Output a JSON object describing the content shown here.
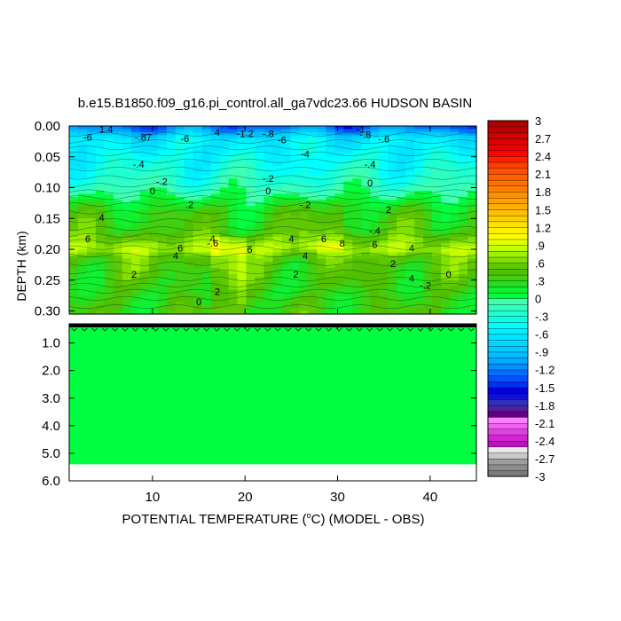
{
  "chart_data": {
    "type": "heatmap",
    "title": "b.e15.B1850.f09_g16.pi_control.all_ga7vdc23.66 HUDSON BASIN",
    "xlabel_prefix": "POTENTIAL TEMPERATURE (",
    "xlabel_unit": "C",
    "xlabel_suffix": ") (MODEL - OBS)",
    "ylabel": "DEPTH (km)",
    "xlim": [
      1,
      45
    ],
    "x_ticks": [
      "10",
      "20",
      "30",
      "40"
    ],
    "x_tick_values": [
      10,
      20,
      30,
      40
    ],
    "upper_panel": {
      "ylim": [
        0.0,
        0.305
      ],
      "y_ticks": [
        "0.00",
        "0.05",
        "0.10",
        "0.15",
        "0.20",
        "0.25",
        "0.30"
      ],
      "y_tick_values": [
        0.0,
        0.05,
        0.1,
        0.15,
        0.2,
        0.25,
        0.3
      ],
      "layers": [
        {
          "depth": 0.0,
          "value": -1.3
        },
        {
          "depth": 0.01,
          "value": -1.0
        },
        {
          "depth": 0.02,
          "value": -0.6
        },
        {
          "depth": 0.04,
          "value": -0.5
        },
        {
          "depth": 0.06,
          "value": -0.4
        },
        {
          "depth": 0.08,
          "value": -0.3
        },
        {
          "depth": 0.1,
          "value": -0.15
        },
        {
          "depth": 0.12,
          "value": 0.1
        },
        {
          "depth": 0.14,
          "value": 0.3
        },
        {
          "depth": 0.17,
          "value": 0.4
        },
        {
          "depth": 0.185,
          "value": 0.6
        },
        {
          "depth": 0.2,
          "value": 0.8
        },
        {
          "depth": 0.215,
          "value": 0.5
        },
        {
          "depth": 0.24,
          "value": 0.4
        },
        {
          "depth": 0.27,
          "value": 0.3
        },
        {
          "depth": 0.305,
          "value": 0.35
        }
      ],
      "contour_labels": [
        {
          "x": 5,
          "y": 0.005,
          "text": "1.4"
        },
        {
          "x": 3,
          "y": 0.018,
          "text": "-6"
        },
        {
          "x": 9,
          "y": 0.018,
          "text": "-.87"
        },
        {
          "x": 13.5,
          "y": 0.02,
          "text": "-6"
        },
        {
          "x": 20,
          "y": 0.012,
          "text": "-1.2"
        },
        {
          "x": 22.5,
          "y": 0.012,
          "text": "-.8"
        },
        {
          "x": 24,
          "y": 0.022,
          "text": "-6"
        },
        {
          "x": 32.5,
          "y": 0.005,
          "text": "-1"
        },
        {
          "x": 33,
          "y": 0.014,
          "text": "-.8"
        },
        {
          "x": 35,
          "y": 0.021,
          "text": "-.6"
        },
        {
          "x": 26.5,
          "y": 0.045,
          "text": "-4"
        },
        {
          "x": 8.5,
          "y": 0.062,
          "text": "-.4"
        },
        {
          "x": 33.5,
          "y": 0.062,
          "text": "-.4"
        },
        {
          "x": 11,
          "y": 0.09,
          "text": "-.2"
        },
        {
          "x": 10,
          "y": 0.105,
          "text": "0"
        },
        {
          "x": 22.5,
          "y": 0.085,
          "text": "-.2"
        },
        {
          "x": 22.5,
          "y": 0.105,
          "text": "0"
        },
        {
          "x": 33.5,
          "y": 0.092,
          "text": "0"
        },
        {
          "x": 14,
          "y": 0.127,
          "text": ".2"
        },
        {
          "x": 26.5,
          "y": 0.127,
          "text": "-.2"
        },
        {
          "x": 35.5,
          "y": 0.135,
          "text": "2"
        },
        {
          "x": 4.5,
          "y": 0.148,
          "text": "4"
        },
        {
          "x": 34,
          "y": 0.17,
          "text": "-.4"
        },
        {
          "x": 3,
          "y": 0.183,
          "text": "6"
        },
        {
          "x": 16.5,
          "y": 0.183,
          "text": "4"
        },
        {
          "x": 16.5,
          "y": 0.19,
          "text": "-.6"
        },
        {
          "x": 25,
          "y": 0.183,
          "text": "4"
        },
        {
          "x": 28.5,
          "y": 0.183,
          "text": "6"
        },
        {
          "x": 30.5,
          "y": 0.19,
          "text": "8"
        },
        {
          "x": 34,
          "y": 0.192,
          "text": "6"
        },
        {
          "x": 13,
          "y": 0.198,
          "text": "6"
        },
        {
          "x": 20.5,
          "y": 0.2,
          "text": "6"
        },
        {
          "x": 38,
          "y": 0.198,
          "text": "4"
        },
        {
          "x": 12.5,
          "y": 0.21,
          "text": "4"
        },
        {
          "x": 26.5,
          "y": 0.21,
          "text": "4"
        },
        {
          "x": 36,
          "y": 0.223,
          "text": "2"
        },
        {
          "x": 8,
          "y": 0.24,
          "text": "2"
        },
        {
          "x": 25.5,
          "y": 0.24,
          "text": "2"
        },
        {
          "x": 38,
          "y": 0.247,
          "text": "4"
        },
        {
          "x": 42,
          "y": 0.24,
          "text": "0"
        },
        {
          "x": 39.5,
          "y": 0.258,
          "text": "-.2"
        },
        {
          "x": 17,
          "y": 0.268,
          "text": "2"
        },
        {
          "x": 15,
          "y": 0.285,
          "text": "0"
        },
        {
          "x": 17,
          "y": 0.01,
          "text": "4"
        }
      ]
    },
    "lower_panel": {
      "ylim": [
        0.305,
        6.0
      ],
      "y_ticks": [
        "1.0",
        "2.0",
        "3.0",
        "4.0",
        "5.0",
        "6.0"
      ],
      "y_tick_values": [
        1.0,
        2.0,
        3.0,
        4.0,
        5.0,
        6.0
      ],
      "fill_value": 0.05,
      "fill_bottom_depth": 5.4
    },
    "colorbar": {
      "levels": [
        "3",
        "2.7",
        "2.4",
        "2.1",
        "1.8",
        "1.5",
        "1.2",
        ".9",
        ".6",
        ".3",
        "0",
        "-.3",
        "-.6",
        "-.9",
        "-1.2",
        "-1.5",
        "-1.8",
        "-2.1",
        "-2.4",
        "-2.7",
        "-3"
      ],
      "level_values": [
        3,
        2.7,
        2.4,
        2.1,
        1.8,
        1.5,
        1.2,
        0.9,
        0.6,
        0.3,
        0,
        -0.3,
        -0.6,
        -0.9,
        -1.2,
        -1.5,
        -1.8,
        -2.1,
        -2.4,
        -2.7,
        -3
      ],
      "colors": [
        "#7a7a7a",
        "#8c8c8c",
        "#9e9e9e",
        "#c8c8c8",
        "#e8e8e8",
        "#c010c0",
        "#d025d0",
        "#e040e0",
        "#f060f0",
        "#ff80ff",
        "#600080",
        "#5020a0",
        "#3030c0",
        "#1010d0",
        "#0000e0",
        "#0030f0",
        "#0050ff",
        "#0070ff",
        "#0090ff",
        "#00a8ff",
        "#00bfff",
        "#00ccff",
        "#00d8ff",
        "#00e4ff",
        "#00f0ff",
        "#00ffff",
        "#10ffe0",
        "#20ffd0",
        "#30ffc0",
        "#40ffb0",
        "#00ff40",
        "#10f030",
        "#20e020",
        "#40d010",
        "#50c000",
        "#60c800",
        "#80e000",
        "#a0f000",
        "#c0ff00",
        "#e0ff00",
        "#ffff00",
        "#fff000",
        "#ffe000",
        "#ffd000",
        "#ffc000",
        "#ffb000",
        "#ffa000",
        "#ff9000",
        "#ff8000",
        "#ff7000",
        "#ff6000",
        "#ff5000",
        "#ff4000",
        "#ff2000",
        "#ff0000",
        "#f00000",
        "#e00000",
        "#d00000",
        "#c00000",
        "#b00000"
      ]
    }
  }
}
